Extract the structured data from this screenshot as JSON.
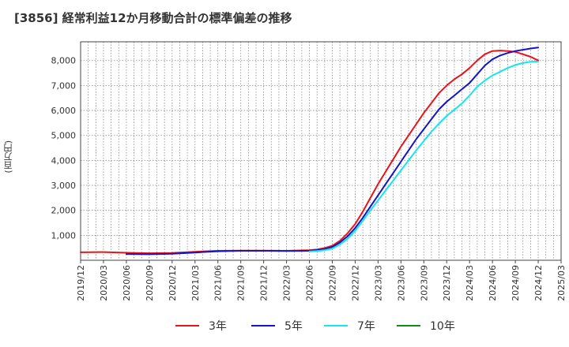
{
  "chart_data": {
    "type": "line",
    "title": "[3856]  経常利益12か月移動合計の標準偏差の推移",
    "xlabel": "",
    "ylabel": "(百万円)",
    "x_tick_labels": [
      "2019/12",
      "2020/03",
      "2020/06",
      "2020/09",
      "2020/12",
      "2021/03",
      "2021/06",
      "2021/09",
      "2021/12",
      "2022/03",
      "2022/06",
      "2022/09",
      "2022/12",
      "2023/03",
      "2023/06",
      "2023/09",
      "2023/12",
      "2024/03",
      "2024/06",
      "2024/09",
      "2024/12",
      "2025/03"
    ],
    "y_ticks": [
      1000,
      2000,
      3000,
      4000,
      5000,
      6000,
      7000,
      8000
    ],
    "y_tick_labels": [
      "1,000",
      "2,000",
      "3,000",
      "4,000",
      "5,000",
      "6,000",
      "7,000",
      "8,000"
    ],
    "ylim": [
      0,
      8750
    ],
    "grid": true,
    "legend_position": "bottom",
    "series": [
      {
        "name": "3年",
        "color": "#e8141a",
        "x": [
          "2019/12",
          "2020/03",
          "2020/06",
          "2020/09",
          "2020/12",
          "2021/03",
          "2021/06",
          "2021/09",
          "2021/12",
          "2022/03",
          "2022/06",
          "2022/07",
          "2022/08",
          "2022/09",
          "2022/10",
          "2022/11",
          "2022/12",
          "2023/01",
          "2023/02",
          "2023/03",
          "2023/04",
          "2023/05",
          "2023/06",
          "2023/07",
          "2023/08",
          "2023/09",
          "2023/10",
          "2023/11",
          "2023/12",
          "2024/01",
          "2024/02",
          "2024/03",
          "2024/04",
          "2024/05",
          "2024/06",
          "2024/07",
          "2024/08",
          "2024/09",
          "2024/10",
          "2024/11",
          "2024/12"
        ],
        "values": [
          320,
          330,
          300,
          280,
          290,
          340,
          380,
          390,
          390,
          380,
          400,
          430,
          490,
          580,
          780,
          1080,
          1450,
          1950,
          2500,
          3050,
          3550,
          4050,
          4550,
          5000,
          5450,
          5900,
          6300,
          6700,
          7000,
          7250,
          7450,
          7700,
          8000,
          8250,
          8380,
          8400,
          8380,
          8350,
          8250,
          8150,
          8000
        ]
      },
      {
        "name": "5年",
        "color": "#1414c8",
        "x": [
          "2020/06",
          "2020/09",
          "2020/12",
          "2021/03",
          "2021/06",
          "2021/09",
          "2021/12",
          "2022/03",
          "2022/06",
          "2022/07",
          "2022/08",
          "2022/09",
          "2022/10",
          "2022/11",
          "2022/12",
          "2023/01",
          "2023/02",
          "2023/03",
          "2023/04",
          "2023/05",
          "2023/06",
          "2023/07",
          "2023/08",
          "2023/09",
          "2023/10",
          "2023/11",
          "2023/12",
          "2024/01",
          "2024/02",
          "2024/03",
          "2024/04",
          "2024/05",
          "2024/06",
          "2024/07",
          "2024/08",
          "2024/09",
          "2024/10",
          "2024/11",
          "2024/12"
        ],
        "values": [
          250,
          240,
          260,
          310,
          360,
          380,
          380,
          370,
          380,
          410,
          450,
          530,
          710,
          960,
          1290,
          1700,
          2150,
          2600,
          3050,
          3500,
          3950,
          4400,
          4850,
          5250,
          5650,
          6050,
          6350,
          6600,
          6850,
          7100,
          7450,
          7800,
          8050,
          8200,
          8300,
          8380,
          8430,
          8480,
          8520
        ]
      },
      {
        "name": "7年",
        "color": "#14e6f0",
        "x": [
          "2022/06",
          "2022/07",
          "2022/08",
          "2022/09",
          "2022/10",
          "2022/11",
          "2022/12",
          "2023/01",
          "2023/02",
          "2023/03",
          "2023/04",
          "2023/05",
          "2023/06",
          "2023/07",
          "2023/08",
          "2023/09",
          "2023/10",
          "2023/11",
          "2023/12",
          "2024/01",
          "2024/02",
          "2024/03",
          "2024/04",
          "2024/05",
          "2024/06",
          "2024/07",
          "2024/08",
          "2024/09",
          "2024/10",
          "2024/11",
          "2024/12"
        ],
        "values": [
          350,
          370,
          400,
          470,
          630,
          860,
          1180,
          1580,
          2000,
          2400,
          2800,
          3200,
          3600,
          4000,
          4400,
          4780,
          5150,
          5480,
          5780,
          6030,
          6280,
          6600,
          6950,
          7200,
          7400,
          7550,
          7700,
          7820,
          7900,
          7950,
          7960
        ]
      },
      {
        "name": "10年",
        "color": "#148c14",
        "x": [],
        "values": []
      }
    ]
  }
}
